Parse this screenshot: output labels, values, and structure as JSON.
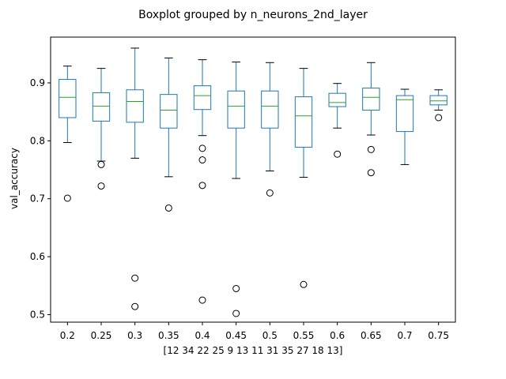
{
  "chart_data": {
    "type": "boxplot",
    "title": "Boxplot grouped by n_neurons_2nd_layer",
    "xlabel": "[12 34 22 25  9 13 11 31 35 27 18 13]",
    "ylabel": "val_accuracy",
    "ylim": [
      0.487,
      0.979
    ],
    "yticks": [
      0.5,
      0.6,
      0.7,
      0.8,
      0.9
    ],
    "grid": false,
    "legend": "none",
    "categories": [
      "0.2",
      "0.25",
      "0.3",
      "0.35",
      "0.4",
      "0.45",
      "0.5",
      "0.55",
      "0.6",
      "0.65",
      "0.7",
      "0.75"
    ],
    "boxes": [
      {
        "whisker_low": 0.797,
        "q1": 0.84,
        "median": 0.875,
        "q3": 0.906,
        "whisker_high": 0.929,
        "outliers": [
          0.701
        ]
      },
      {
        "whisker_low": 0.765,
        "q1": 0.834,
        "median": 0.86,
        "q3": 0.883,
        "whisker_high": 0.925,
        "outliers": [
          0.759,
          0.722
        ]
      },
      {
        "whisker_low": 0.77,
        "q1": 0.832,
        "median": 0.868,
        "q3": 0.888,
        "whisker_high": 0.96,
        "outliers": [
          0.563,
          0.514
        ]
      },
      {
        "whisker_low": 0.738,
        "q1": 0.822,
        "median": 0.853,
        "q3": 0.88,
        "whisker_high": 0.943,
        "outliers": [
          0.684
        ]
      },
      {
        "whisker_low": 0.809,
        "q1": 0.854,
        "median": 0.878,
        "q3": 0.895,
        "whisker_high": 0.94,
        "outliers": [
          0.787,
          0.767,
          0.723,
          0.525
        ]
      },
      {
        "whisker_low": 0.735,
        "q1": 0.822,
        "median": 0.86,
        "q3": 0.886,
        "whisker_high": 0.936,
        "outliers": [
          0.545,
          0.502
        ]
      },
      {
        "whisker_low": 0.748,
        "q1": 0.822,
        "median": 0.86,
        "q3": 0.886,
        "whisker_high": 0.935,
        "outliers": [
          0.71
        ]
      },
      {
        "whisker_low": 0.737,
        "q1": 0.789,
        "median": 0.843,
        "q3": 0.876,
        "whisker_high": 0.925,
        "outliers": [
          0.552
        ]
      },
      {
        "whisker_low": 0.822,
        "q1": 0.859,
        "median": 0.866,
        "q3": 0.882,
        "whisker_high": 0.899,
        "outliers": [
          0.777
        ]
      },
      {
        "whisker_low": 0.81,
        "q1": 0.853,
        "median": 0.875,
        "q3": 0.891,
        "whisker_high": 0.935,
        "outliers": [
          0.785,
          0.745
        ]
      },
      {
        "whisker_low": 0.759,
        "q1": 0.816,
        "median": 0.871,
        "q3": 0.878,
        "whisker_high": 0.889,
        "outliers": []
      },
      {
        "whisker_low": 0.853,
        "q1": 0.862,
        "median": 0.869,
        "q3": 0.878,
        "whisker_high": 0.888,
        "outliers": [
          0.84
        ]
      }
    ],
    "colors": {
      "box": "#1f77b4",
      "median": "#2ca02c",
      "whisker": "#000000",
      "outlier": "#000000"
    }
  }
}
